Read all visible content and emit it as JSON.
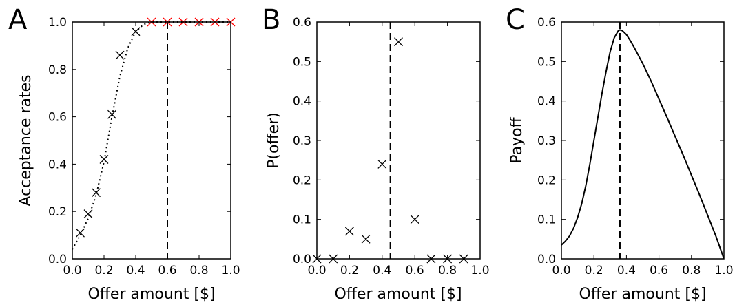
{
  "chart_data": [
    {
      "panel": "A",
      "type": "scatter",
      "xlabel": "Offer amount [$]",
      "ylabel": "Acceptance rates",
      "xlim": [
        0.0,
        1.0
      ],
      "ylim": [
        0.0,
        1.0
      ],
      "xticks": [
        "0.0",
        "0.2",
        "0.4",
        "0.6",
        "0.8",
        "1.0"
      ],
      "yticks": [
        "0.0",
        "0.2",
        "0.4",
        "0.6",
        "0.8",
        "1.0"
      ],
      "vline": 0.6,
      "marker_color": "#000000",
      "highlight_color": "#ff0000",
      "series": [
        {
          "x": [
            0.05,
            0.1,
            0.15,
            0.2,
            0.25,
            0.3,
            0.4
          ],
          "y": [
            0.11,
            0.19,
            0.28,
            0.42,
            0.61,
            0.86,
            0.96
          ]
        },
        {
          "x": [
            0.5,
            0.6,
            0.7,
            0.8,
            0.9,
            1.0
          ],
          "y": [
            1.0,
            1.0,
            1.0,
            1.0,
            1.0,
            1.0
          ]
        }
      ],
      "fit_curve": {
        "x": [
          0.0,
          0.05,
          0.1,
          0.15,
          0.2,
          0.25,
          0.3,
          0.35,
          0.4,
          0.45,
          0.5,
          0.6,
          0.7,
          0.8,
          0.9,
          1.0
        ],
        "y": [
          0.04,
          0.1,
          0.17,
          0.27,
          0.41,
          0.6,
          0.77,
          0.89,
          0.96,
          0.99,
          1.0,
          1.0,
          1.0,
          1.0,
          1.0,
          1.0
        ]
      }
    },
    {
      "panel": "B",
      "type": "scatter",
      "xlabel": "Offer amount [$]",
      "ylabel": "P(offer)",
      "xlim": [
        0.0,
        1.0
      ],
      "ylim": [
        0.0,
        0.6
      ],
      "xticks": [
        "0.0",
        "0.2",
        "0.4",
        "0.6",
        "0.8",
        "1.0"
      ],
      "yticks": [
        "0.0",
        "0.1",
        "0.2",
        "0.3",
        "0.4",
        "0.5",
        "0.6"
      ],
      "vline": 0.45,
      "marker_color": "#000000",
      "series": [
        {
          "x": [
            0.0,
            0.1,
            0.2,
            0.3,
            0.4,
            0.5,
            0.6,
            0.7,
            0.8,
            0.9
          ],
          "y": [
            0.0,
            0.0,
            0.07,
            0.05,
            0.24,
            0.55,
            0.1,
            0.0,
            0.0,
            0.0
          ]
        }
      ]
    },
    {
      "panel": "C",
      "type": "line",
      "xlabel": "Offer amount [$]",
      "ylabel": "Payoff",
      "xlim": [
        0.0,
        1.0
      ],
      "ylim": [
        0.0,
        0.6
      ],
      "xticks": [
        "0.0",
        "0.2",
        "0.4",
        "0.6",
        "0.8",
        "1.0"
      ],
      "yticks": [
        "0.0",
        "0.1",
        "0.2",
        "0.3",
        "0.4",
        "0.5",
        "0.6"
      ],
      "vline": 0.36,
      "line_color": "#000000",
      "series": [
        {
          "x": [
            0.0,
            0.025,
            0.05,
            0.075,
            0.1,
            0.125,
            0.15,
            0.175,
            0.2,
            0.225,
            0.25,
            0.275,
            0.3,
            0.325,
            0.35,
            0.36,
            0.375,
            0.4,
            0.425,
            0.45,
            0.5,
            0.55,
            0.6,
            0.65,
            0.7,
            0.75,
            0.8,
            0.85,
            0.9,
            0.95,
            1.0
          ],
          "y": [
            0.035,
            0.045,
            0.058,
            0.078,
            0.105,
            0.14,
            0.185,
            0.24,
            0.3,
            0.36,
            0.42,
            0.475,
            0.525,
            0.56,
            0.578,
            0.58,
            0.578,
            0.568,
            0.552,
            0.534,
            0.495,
            0.452,
            0.405,
            0.358,
            0.31,
            0.262,
            0.212,
            0.162,
            0.11,
            0.058,
            0.0
          ]
        }
      ]
    }
  ]
}
